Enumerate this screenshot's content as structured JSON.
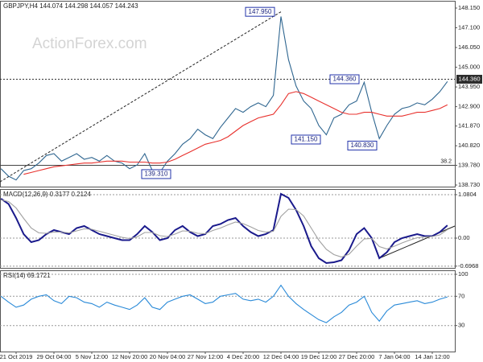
{
  "chart_data": [
    {
      "type": "line",
      "title": "GBPJPY,H4  144.074 144.298 144.057 144.243",
      "watermark": "ActionForex.com",
      "ylim": [
        138.73,
        148.15
      ],
      "yticks": [
        {
          "value": 148.15,
          "label": "148.150"
        },
        {
          "value": 147.1,
          "label": "147.100"
        },
        {
          "value": 146.05,
          "label": "146.050"
        },
        {
          "value": 145,
          "label": "145.000"
        },
        {
          "value": 143.95,
          "label": "143.950"
        },
        {
          "value": 142.9,
          "label": "142.900"
        },
        {
          "value": 141.87,
          "label": "141.870"
        },
        {
          "value": 140.82,
          "label": "140.820"
        },
        {
          "value": 139.78,
          "label": "139.780"
        },
        {
          "value": 138.73,
          "label": "138.730"
        }
      ],
      "series": [
        {
          "color": "#2f6690",
          "values": [
            139.6,
            139.2,
            139.0,
            139.5,
            139.6,
            139.9,
            140.3,
            140.4,
            140.0,
            140.2,
            140.4,
            140.1,
            140.2,
            140.0,
            140.3,
            140.0,
            139.9,
            139.6,
            139.8,
            140.4,
            139.5,
            139.4,
            140.0,
            140.4,
            140.9,
            141.2,
            141.7,
            141.4,
            141.2,
            141.8,
            142.3,
            142.8,
            142.6,
            142.9,
            143.1,
            142.9,
            143.5,
            147.7,
            145.4,
            144.0,
            143.2,
            142.8,
            141.9,
            141.4,
            142.3,
            142.5,
            143.0,
            143.2,
            144.2,
            142.6,
            141.2,
            141.9,
            142.5,
            142.8,
            142.9,
            143.1,
            143.0,
            143.3,
            143.7,
            144.24
          ]
        },
        {
          "color": "#e8302c",
          "values": [
            null,
            null,
            null,
            139.3,
            139.4,
            139.5,
            139.6,
            139.7,
            139.75,
            139.8,
            139.85,
            139.9,
            139.9,
            139.95,
            140.0,
            140.0,
            140.0,
            139.95,
            139.95,
            139.95,
            139.9,
            139.9,
            139.95,
            140.1,
            140.3,
            140.5,
            140.7,
            140.9,
            141.0,
            141.1,
            141.3,
            141.6,
            141.9,
            142.1,
            142.3,
            142.4,
            142.5,
            143.0,
            143.6,
            143.7,
            143.6,
            143.4,
            143.2,
            143.0,
            142.8,
            142.6,
            142.5,
            142.5,
            142.6,
            142.6,
            142.5,
            142.4,
            142.4,
            142.4,
            142.5,
            142.6,
            142.6,
            142.7,
            142.8,
            143.0
          ]
        }
      ],
      "annotations": [
        {
          "value": 147.95,
          "label": "147.950"
        },
        {
          "value": 144.36,
          "label": "144.360"
        },
        {
          "value": 141.15,
          "label": "141.150"
        },
        {
          "value": 140.83,
          "label": "140.830"
        },
        {
          "value": 139.31,
          "label": "139.310"
        }
      ],
      "hline": {
        "value": 144.36,
        "label": "144.360"
      },
      "level": {
        "value": 139.78,
        "label": "38.2"
      },
      "trendline": [
        138.9,
        147.95
      ]
    },
    {
      "type": "line",
      "title": "MACD(12,26,9) 0.3177 0.2124",
      "ylim": [
        -0.74,
        1.2
      ],
      "yticks": [
        1.0804,
        {
          "value": 0,
          "label": "0.00"
        },
        -0.6968
      ],
      "series": [
        {
          "color": "#1a1a8c",
          "values": [
            0.98,
            0.85,
            0.5,
            0.1,
            -0.1,
            -0.05,
            0.1,
            0.2,
            0.15,
            0.1,
            0.25,
            0.3,
            0.2,
            0.1,
            0.05,
            0.0,
            -0.05,
            -0.05,
            0.1,
            0.3,
            0.15,
            -0.05,
            0.0,
            0.2,
            0.3,
            0.15,
            0.05,
            0.1,
            0.3,
            0.35,
            0.45,
            0.5,
            0.3,
            0.15,
            0.05,
            0.1,
            0.2,
            1.1,
            1.0,
            0.7,
            0.3,
            -0.2,
            -0.5,
            -0.62,
            -0.6,
            -0.55,
            -0.3,
            0.1,
            0.25,
            0.0,
            -0.5,
            -0.35,
            -0.1,
            0.0,
            0.05,
            0.1,
            0.05,
            0.05,
            0.15,
            0.3177
          ]
        },
        {
          "color": "#a0a0a0",
          "values": [
            0.95,
            0.91,
            0.75,
            0.49,
            0.25,
            0.13,
            0.12,
            0.15,
            0.15,
            0.13,
            0.18,
            0.23,
            0.22,
            0.17,
            0.12,
            0.07,
            0.02,
            -0.01,
            0.03,
            0.14,
            0.14,
            0.06,
            0.04,
            0.1,
            0.18,
            0.17,
            0.12,
            0.11,
            0.19,
            0.25,
            0.33,
            0.4,
            0.36,
            0.28,
            0.19,
            0.15,
            0.17,
            0.54,
            0.72,
            0.71,
            0.55,
            0.25,
            -0.05,
            -0.28,
            -0.41,
            -0.47,
            -0.4,
            -0.2,
            -0.02,
            -0.01,
            -0.21,
            -0.27,
            -0.2,
            -0.12,
            -0.05,
            0.01,
            0.03,
            0.04,
            0.08,
            0.2124
          ]
        }
      ],
      "trendline": [
        -0.5,
        0.3
      ]
    },
    {
      "type": "line",
      "title": "RSI(14) 69.1721",
      "ylim": [
        0,
        100
      ],
      "yticks": [
        100,
        70,
        30
      ],
      "series": [
        {
          "color": "#2a8ad8",
          "values": [
            70,
            62,
            55,
            58,
            66,
            70,
            72,
            64,
            60,
            70,
            68,
            62,
            60,
            55,
            62,
            58,
            55,
            52,
            58,
            68,
            55,
            52,
            62,
            66,
            70,
            72,
            66,
            60,
            62,
            70,
            72,
            74,
            66,
            64,
            66,
            62,
            70,
            85,
            70,
            60,
            52,
            45,
            38,
            34,
            42,
            48,
            58,
            62,
            70,
            48,
            36,
            50,
            58,
            60,
            62,
            64,
            60,
            62,
            66,
            69.1721
          ]
        }
      ],
      "categories": [
        null,
        null,
        "21 Oct 2019",
        null,
        null,
        null,
        null,
        "29 Oct 04:00",
        null,
        null,
        null,
        null,
        "5 Nov 12:00",
        null,
        null,
        null,
        null,
        "12 Nov 20:00",
        null,
        null,
        null,
        null,
        "20 Nov 04:00",
        null,
        null,
        null,
        null,
        "27 Nov 12:00",
        null,
        null,
        null,
        null,
        "4 Dec 20:00",
        null,
        null,
        null,
        null,
        "12 Dec 04:00",
        null,
        null,
        null,
        null,
        "19 Dec 12:00",
        null,
        null,
        null,
        null,
        "27 Dec 20:00",
        null,
        null,
        null,
        null,
        "7 Jan 04:00",
        null,
        null,
        null,
        null,
        "14 Jan 12:00",
        null,
        null
      ]
    }
  ]
}
